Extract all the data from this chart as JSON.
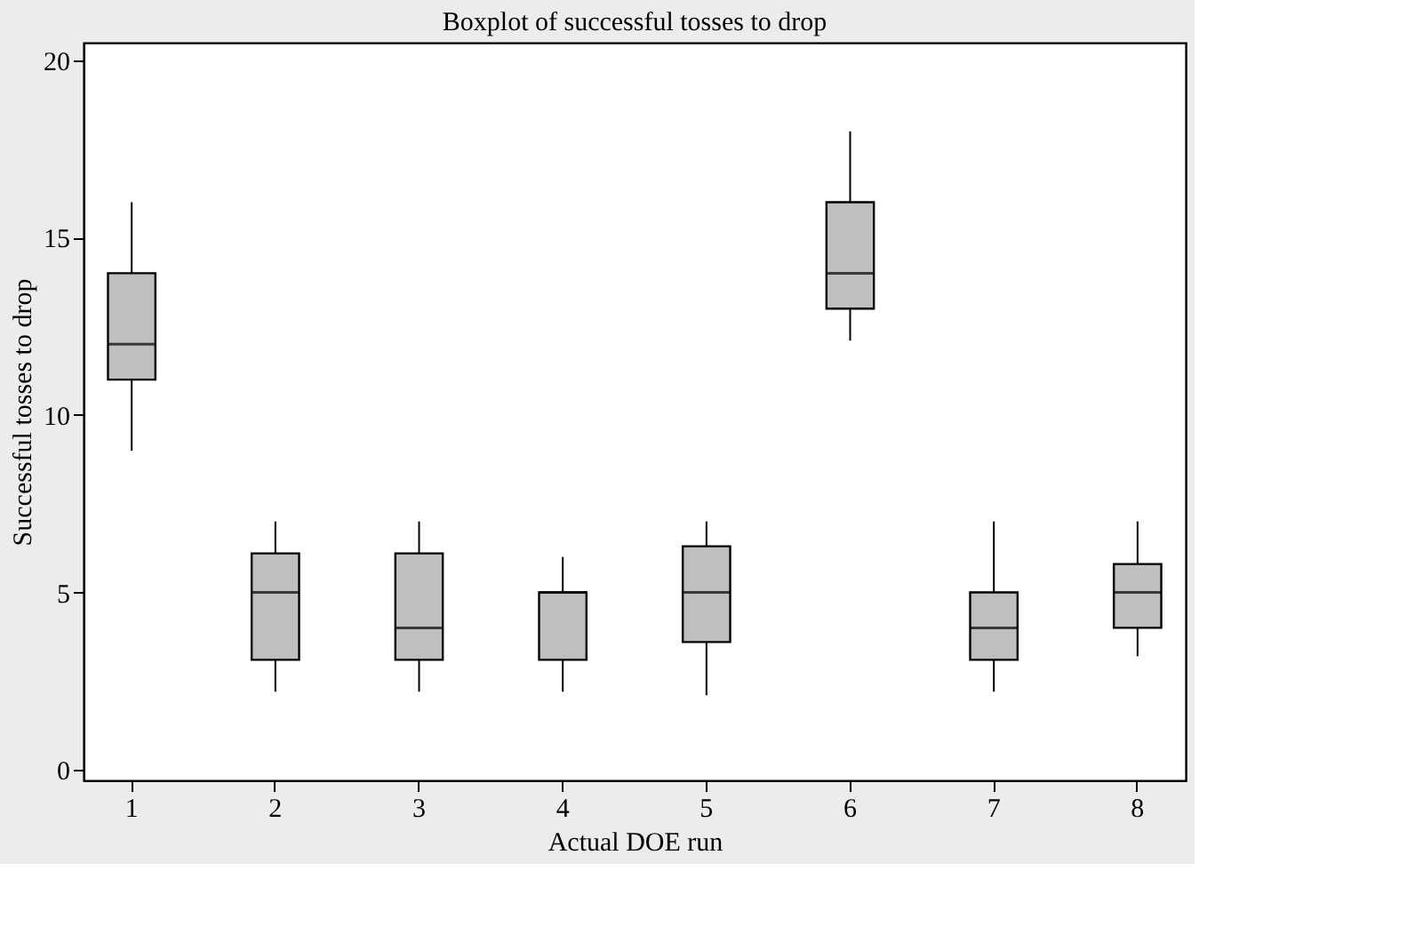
{
  "chart_data": {
    "type": "box",
    "title": "Boxplot of successful tosses to drop",
    "xlabel": "Actual DOE run",
    "ylabel": "Successful tosses to drop",
    "categories": [
      "1",
      "2",
      "3",
      "4",
      "5",
      "6",
      "7",
      "8"
    ],
    "color": "#bebfc1",
    "boxes": [
      {
        "low": 9,
        "q1": 11,
        "median": 12,
        "q3": 14,
        "high": 16
      },
      {
        "low": 2.2,
        "q1": 3.1,
        "median": 5,
        "q3": 6.1,
        "high": 7
      },
      {
        "low": 2.2,
        "q1": 3.1,
        "median": 4,
        "q3": 6.1,
        "high": 7
      },
      {
        "low": 2.2,
        "q1": 3.1,
        "median": 5,
        "q3": 5,
        "high": 6
      },
      {
        "low": 2.1,
        "q1": 3.6,
        "median": 5,
        "q3": 6.3,
        "high": 7
      },
      {
        "low": 12.1,
        "q1": 13,
        "median": 14,
        "q3": 16,
        "high": 18
      },
      {
        "low": 2.2,
        "q1": 3.1,
        "median": 4,
        "q3": 5,
        "high": 7
      },
      {
        "low": 3.2,
        "q1": 4,
        "median": 5,
        "q3": 5.8,
        "high": 7
      }
    ],
    "ylim": [
      -0.3,
      20.5
    ],
    "yticks": [
      0,
      5,
      10,
      15,
      20
    ],
    "grid": false
  }
}
